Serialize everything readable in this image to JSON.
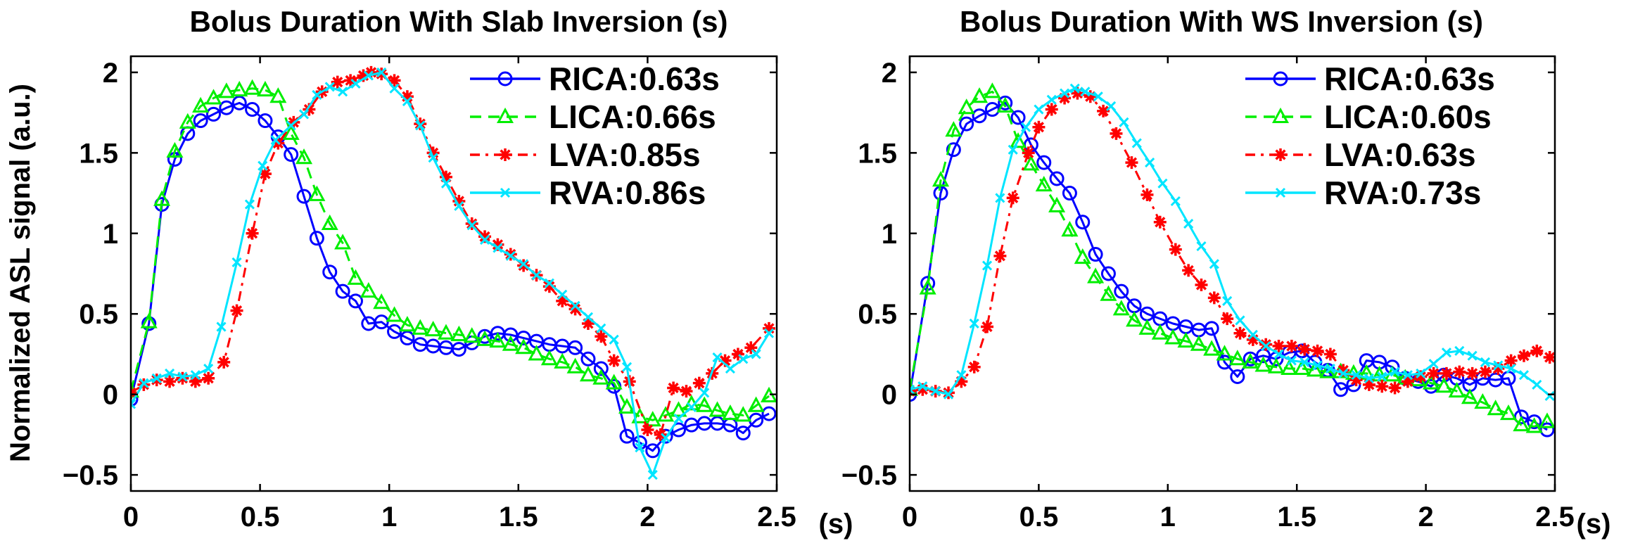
{
  "figure": {
    "ylabel": "Normalized ASL signal (a.u.)"
  },
  "chart_data": [
    {
      "type": "line",
      "title": "Bolus Duration With Slab Inversion (s)",
      "xlabel": "(s)",
      "ylabel": "Normalized ASL signal (a.u.)",
      "xlim": [
        0,
        2.5
      ],
      "ylim": [
        -0.6,
        2.1
      ],
      "xticks": [
        0,
        0.5,
        1,
        1.5,
        2,
        2.5
      ],
      "xtick_labels": [
        "0",
        "0.5",
        "1",
        "1.5",
        "2",
        "2.5"
      ],
      "yticks": [
        -0.5,
        0,
        0.5,
        1,
        1.5,
        2
      ],
      "ytick_labels": [
        "−0.5",
        "0",
        "0.5",
        "1",
        "1.5",
        "2"
      ],
      "grid": false,
      "legend_position": "top-right",
      "series": [
        {
          "name": "RICA:0.63s",
          "color": "#0000ff",
          "linestyle": "solid",
          "marker": "circle",
          "x": [
            0,
            0.07,
            0.12,
            0.17,
            0.22,
            0.27,
            0.32,
            0.37,
            0.42,
            0.47,
            0.52,
            0.57,
            0.62,
            0.67,
            0.72,
            0.77,
            0.82,
            0.87,
            0.92,
            0.97,
            1.02,
            1.07,
            1.12,
            1.17,
            1.22,
            1.27,
            1.32,
            1.37,
            1.42,
            1.47,
            1.52,
            1.57,
            1.62,
            1.67,
            1.72,
            1.77,
            1.82,
            1.87,
            1.92,
            1.97,
            2.02,
            2.07,
            2.12,
            2.17,
            2.22,
            2.27,
            2.32,
            2.37,
            2.42,
            2.47
          ],
          "y": [
            -0.03,
            0.44,
            1.18,
            1.46,
            1.62,
            1.7,
            1.74,
            1.78,
            1.81,
            1.77,
            1.7,
            1.6,
            1.49,
            1.23,
            0.97,
            0.76,
            0.64,
            0.58,
            0.44,
            0.45,
            0.39,
            0.35,
            0.31,
            0.3,
            0.29,
            0.28,
            0.32,
            0.36,
            0.38,
            0.37,
            0.35,
            0.33,
            0.31,
            0.3,
            0.29,
            0.22,
            0.16,
            0.05,
            -0.26,
            -0.3,
            -0.35,
            -0.26,
            -0.22,
            -0.19,
            -0.18,
            -0.18,
            -0.19,
            -0.24,
            -0.16,
            -0.12
          ]
        },
        {
          "name": "LICA:0.66s",
          "color": "#00ee00",
          "linestyle": "dashed",
          "marker": "triangle",
          "x": [
            0,
            0.07,
            0.12,
            0.17,
            0.22,
            0.27,
            0.32,
            0.37,
            0.42,
            0.47,
            0.52,
            0.57,
            0.62,
            0.67,
            0.72,
            0.77,
            0.82,
            0.87,
            0.92,
            0.97,
            1.02,
            1.07,
            1.12,
            1.17,
            1.22,
            1.27,
            1.32,
            1.37,
            1.42,
            1.47,
            1.52,
            1.57,
            1.62,
            1.67,
            1.72,
            1.77,
            1.82,
            1.87,
            1.92,
            1.97,
            2.02,
            2.07,
            2.12,
            2.17,
            2.22,
            2.27,
            2.32,
            2.37,
            2.42,
            2.47
          ],
          "y": [
            0.02,
            0.45,
            1.21,
            1.51,
            1.69,
            1.79,
            1.84,
            1.88,
            1.89,
            1.9,
            1.89,
            1.85,
            1.62,
            1.47,
            1.24,
            1.06,
            0.94,
            0.72,
            0.64,
            0.57,
            0.49,
            0.43,
            0.41,
            0.4,
            0.38,
            0.37,
            0.36,
            0.34,
            0.33,
            0.31,
            0.29,
            0.25,
            0.22,
            0.2,
            0.17,
            0.12,
            0.1,
            0.07,
            -0.08,
            -0.14,
            -0.16,
            -0.13,
            -0.1,
            -0.06,
            -0.07,
            -0.1,
            -0.12,
            -0.13,
            -0.07,
            -0.01
          ]
        },
        {
          "name": "LVA:0.85s",
          "color": "#ff0000",
          "linestyle": "dashdot",
          "marker": "star",
          "x": [
            0,
            0.05,
            0.1,
            0.15,
            0.2,
            0.25,
            0.3,
            0.36,
            0.41,
            0.47,
            0.52,
            0.57,
            0.63,
            0.69,
            0.74,
            0.8,
            0.85,
            0.9,
            0.93,
            0.97,
            1.02,
            1.07,
            1.12,
            1.17,
            1.22,
            1.27,
            1.32,
            1.37,
            1.42,
            1.47,
            1.52,
            1.57,
            1.62,
            1.67,
            1.72,
            1.77,
            1.82,
            1.87,
            1.93,
            2.0,
            2.05,
            2.1,
            2.15,
            2.2,
            2.25,
            2.3,
            2.35,
            2.4,
            2.47
          ],
          "y": [
            0.01,
            0.06,
            0.09,
            0.08,
            0.1,
            0.08,
            0.1,
            0.2,
            0.52,
            1.0,
            1.37,
            1.56,
            1.69,
            1.77,
            1.88,
            1.94,
            1.95,
            1.98,
            2.0,
            1.99,
            1.95,
            1.85,
            1.68,
            1.5,
            1.35,
            1.2,
            1.06,
            0.98,
            0.93,
            0.87,
            0.8,
            0.74,
            0.67,
            0.58,
            0.53,
            0.44,
            0.36,
            0.21,
            0.08,
            -0.22,
            -0.25,
            0.04,
            0.02,
            0.07,
            0.13,
            0.21,
            0.25,
            0.29,
            0.41
          ]
        },
        {
          "name": "RVA:0.86s",
          "color": "#00e5ff",
          "linestyle": "solid",
          "marker": "x",
          "x": [
            0,
            0.05,
            0.1,
            0.15,
            0.2,
            0.25,
            0.3,
            0.35,
            0.41,
            0.46,
            0.51,
            0.56,
            0.62,
            0.67,
            0.72,
            0.77,
            0.82,
            0.87,
            0.92,
            0.97,
            1.02,
            1.07,
            1.12,
            1.17,
            1.22,
            1.27,
            1.32,
            1.37,
            1.42,
            1.47,
            1.52,
            1.57,
            1.62,
            1.67,
            1.72,
            1.77,
            1.82,
            1.87,
            1.92,
            1.97,
            2.02,
            2.07,
            2.12,
            2.17,
            2.22,
            2.27,
            2.32,
            2.37,
            2.42,
            2.47
          ],
          "y": [
            -0.06,
            0.07,
            0.1,
            0.13,
            0.11,
            0.12,
            0.16,
            0.42,
            0.82,
            1.18,
            1.42,
            1.58,
            1.67,
            1.74,
            1.86,
            1.91,
            1.88,
            1.93,
            1.98,
            2.0,
            1.9,
            1.82,
            1.67,
            1.47,
            1.31,
            1.17,
            1.05,
            0.96,
            0.91,
            0.86,
            0.81,
            0.74,
            0.69,
            0.62,
            0.55,
            0.48,
            0.41,
            0.34,
            0.17,
            -0.33,
            -0.5,
            -0.27,
            -0.15,
            -0.08,
            0.01,
            0.23,
            0.16,
            0.22,
            0.25,
            0.38
          ]
        }
      ]
    },
    {
      "type": "line",
      "title": "Bolus Duration With WS Inversion (s)",
      "xlabel": "(s)",
      "ylabel": "",
      "xlim": [
        0,
        2.5
      ],
      "ylim": [
        -0.6,
        2.1
      ],
      "xticks": [
        0,
        0.5,
        1,
        1.5,
        2,
        2.5
      ],
      "xtick_labels": [
        "0",
        "0.5",
        "1",
        "1.5",
        "2",
        "2.5"
      ],
      "yticks": [
        -0.5,
        0,
        0.5,
        1,
        1.5,
        2
      ],
      "ytick_labels": [
        "−0.5",
        "0",
        "0.5",
        "1",
        "1.5",
        "2"
      ],
      "grid": false,
      "legend_position": "top-right",
      "series": [
        {
          "name": "RICA:0.63s",
          "color": "#0000ff",
          "linestyle": "solid",
          "marker": "circle",
          "x": [
            0,
            0.07,
            0.12,
            0.17,
            0.22,
            0.27,
            0.32,
            0.37,
            0.42,
            0.47,
            0.52,
            0.57,
            0.62,
            0.67,
            0.72,
            0.77,
            0.82,
            0.87,
            0.92,
            0.97,
            1.02,
            1.07,
            1.12,
            1.17,
            1.22,
            1.27,
            1.32,
            1.37,
            1.42,
            1.47,
            1.52,
            1.57,
            1.62,
            1.67,
            1.72,
            1.77,
            1.82,
            1.87,
            1.92,
            1.97,
            2.02,
            2.07,
            2.12,
            2.17,
            2.22,
            2.27,
            2.32,
            2.37,
            2.42,
            2.47
          ],
          "y": [
            0.0,
            0.69,
            1.25,
            1.52,
            1.68,
            1.73,
            1.77,
            1.81,
            1.72,
            1.55,
            1.44,
            1.34,
            1.25,
            1.07,
            0.87,
            0.75,
            0.64,
            0.55,
            0.5,
            0.47,
            0.44,
            0.42,
            0.4,
            0.41,
            0.2,
            0.11,
            0.22,
            0.24,
            0.22,
            0.26,
            0.27,
            0.2,
            0.15,
            0.03,
            0.06,
            0.21,
            0.2,
            0.17,
            0.1,
            0.08,
            0.05,
            0.12,
            0.1,
            0.06,
            0.1,
            0.09,
            0.1,
            -0.14,
            -0.17,
            -0.22
          ]
        },
        {
          "name": "LICA:0.60s",
          "color": "#00ee00",
          "linestyle": "dashed",
          "marker": "triangle",
          "x": [
            0,
            0.07,
            0.12,
            0.17,
            0.22,
            0.27,
            0.32,
            0.37,
            0.42,
            0.47,
            0.52,
            0.57,
            0.62,
            0.67,
            0.72,
            0.77,
            0.82,
            0.87,
            0.92,
            0.97,
            1.02,
            1.07,
            1.12,
            1.17,
            1.22,
            1.27,
            1.32,
            1.37,
            1.42,
            1.47,
            1.52,
            1.57,
            1.62,
            1.67,
            1.72,
            1.77,
            1.82,
            1.87,
            1.92,
            1.97,
            2.02,
            2.07,
            2.12,
            2.17,
            2.22,
            2.27,
            2.32,
            2.37,
            2.42,
            2.47
          ],
          "y": [
            0.03,
            0.66,
            1.33,
            1.64,
            1.78,
            1.85,
            1.88,
            1.79,
            1.57,
            1.43,
            1.3,
            1.17,
            1.02,
            0.85,
            0.73,
            0.62,
            0.53,
            0.46,
            0.41,
            0.38,
            0.35,
            0.33,
            0.31,
            0.28,
            0.25,
            0.22,
            0.2,
            0.18,
            0.17,
            0.16,
            0.16,
            0.15,
            0.14,
            0.14,
            0.13,
            0.13,
            0.12,
            0.12,
            0.1,
            0.09,
            0.07,
            0.05,
            0.02,
            -0.02,
            -0.05,
            -0.09,
            -0.12,
            -0.19,
            -0.2,
            -0.17
          ]
        },
        {
          "name": "LVA:0.63s",
          "color": "#ff0000",
          "linestyle": "dashdot",
          "marker": "star",
          "x": [
            0,
            0.05,
            0.1,
            0.15,
            0.2,
            0.25,
            0.3,
            0.35,
            0.4,
            0.46,
            0.5,
            0.55,
            0.6,
            0.65,
            0.7,
            0.75,
            0.8,
            0.86,
            0.92,
            0.97,
            1.03,
            1.08,
            1.13,
            1.18,
            1.23,
            1.28,
            1.33,
            1.38,
            1.43,
            1.48,
            1.53,
            1.58,
            1.63,
            1.68,
            1.73,
            1.78,
            1.83,
            1.88,
            1.93,
            1.98,
            2.03,
            2.08,
            2.13,
            2.18,
            2.23,
            2.28,
            2.33,
            2.38,
            2.43,
            2.48
          ],
          "y": [
            0.02,
            0.03,
            0.02,
            0.01,
            0.08,
            0.17,
            0.42,
            0.86,
            1.22,
            1.5,
            1.66,
            1.77,
            1.84,
            1.87,
            1.85,
            1.76,
            1.62,
            1.44,
            1.24,
            1.07,
            0.9,
            0.77,
            0.68,
            0.6,
            0.47,
            0.38,
            0.34,
            0.31,
            0.3,
            0.3,
            0.28,
            0.27,
            0.25,
            0.15,
            0.09,
            0.06,
            0.05,
            0.04,
            0.08,
            0.11,
            0.13,
            0.13,
            0.14,
            0.13,
            0.14,
            0.16,
            0.21,
            0.24,
            0.27,
            0.23
          ]
        },
        {
          "name": "RVA:0.73s",
          "color": "#00e5ff",
          "linestyle": "solid",
          "marker": "x",
          "x": [
            0,
            0.05,
            0.1,
            0.15,
            0.2,
            0.25,
            0.3,
            0.35,
            0.4,
            0.45,
            0.5,
            0.55,
            0.6,
            0.64,
            0.68,
            0.73,
            0.78,
            0.83,
            0.88,
            0.93,
            0.98,
            1.03,
            1.08,
            1.13,
            1.18,
            1.23,
            1.28,
            1.33,
            1.38,
            1.43,
            1.48,
            1.53,
            1.58,
            1.63,
            1.68,
            1.73,
            1.78,
            1.83,
            1.88,
            1.93,
            1.98,
            2.03,
            2.08,
            2.13,
            2.18,
            2.23,
            2.28,
            2.33,
            2.38,
            2.43,
            2.48
          ],
          "y": [
            0.03,
            0.05,
            0.02,
            0.0,
            0.12,
            0.44,
            0.8,
            1.22,
            1.52,
            1.66,
            1.77,
            1.83,
            1.87,
            1.9,
            1.88,
            1.85,
            1.79,
            1.69,
            1.56,
            1.44,
            1.31,
            1.2,
            1.06,
            0.92,
            0.81,
            0.58,
            0.46,
            0.37,
            0.3,
            0.25,
            0.21,
            0.2,
            0.18,
            0.16,
            0.13,
            0.12,
            0.1,
            0.11,
            0.14,
            0.12,
            0.13,
            0.19,
            0.26,
            0.27,
            0.24,
            0.2,
            0.18,
            0.16,
            0.12,
            0.06,
            -0.01
          ]
        }
      ]
    }
  ]
}
